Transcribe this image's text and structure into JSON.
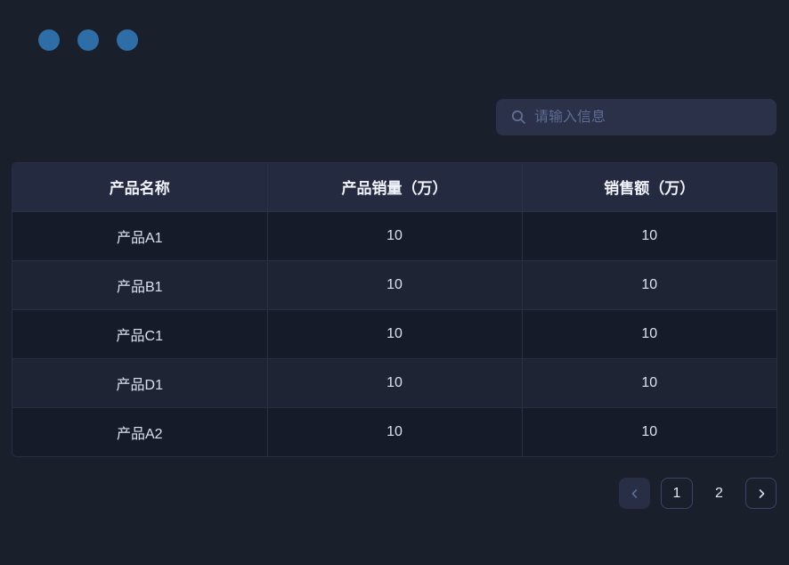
{
  "window": {
    "controls": {
      "dot_count": 3,
      "dot_color": "#2e6da5"
    }
  },
  "search": {
    "placeholder": "请输入信息",
    "value": ""
  },
  "table": {
    "columns": [
      "产品名称",
      "产品销量（万）",
      "销售额（万）"
    ],
    "rows": [
      [
        "产品A1",
        "10",
        "10"
      ],
      [
        "产品B1",
        "10",
        "10"
      ],
      [
        "产品C1",
        "10",
        "10"
      ],
      [
        "产品D1",
        "10",
        "10"
      ],
      [
        "产品A2",
        "10",
        "10"
      ]
    ]
  },
  "pagination": {
    "prev_icon": "chevron-left-icon",
    "next_icon": "chevron-right-icon",
    "pages": [
      "1",
      "2"
    ],
    "active_page": "1"
  },
  "colors": {
    "background": "#1a1f2c",
    "header_bg": "#242b40",
    "row_odd": "#161b29",
    "row_even": "#1e2434",
    "accent_dot": "#2e6da5",
    "border": "#2b3248",
    "muted_text": "#5e6d93"
  }
}
